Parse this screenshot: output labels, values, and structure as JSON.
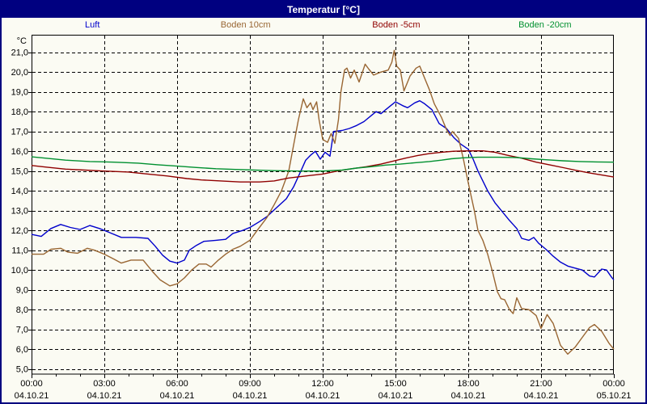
{
  "window": {
    "title": "Temperatur [°C]",
    "title_bg": "#000080",
    "title_color": "#ffffff"
  },
  "legend": {
    "positions_pct": [
      14.1,
      37.9,
      61.3,
      84.4
    ]
  },
  "chart_data": {
    "type": "line",
    "title": "Temperatur [°C]",
    "y_unit": "°C",
    "ylim": [
      5,
      21
    ],
    "xlim_hours": [
      0,
      24
    ],
    "grid": "dashed",
    "legend_position": "top",
    "y_ticks": [
      {
        "v": 21,
        "label": "21,0"
      },
      {
        "v": 20,
        "label": "20,0"
      },
      {
        "v": 19,
        "label": "19,0"
      },
      {
        "v": 18,
        "label": "18,0"
      },
      {
        "v": 17,
        "label": "17,0"
      },
      {
        "v": 16,
        "label": "16,0"
      },
      {
        "v": 15,
        "label": "15,0"
      },
      {
        "v": 14,
        "label": "14,0"
      },
      {
        "v": 13,
        "label": "13,0"
      },
      {
        "v": 12,
        "label": "12,0"
      },
      {
        "v": 11,
        "label": "11,0"
      },
      {
        "v": 10,
        "label": "10,0"
      },
      {
        "v": 9,
        "label": "9,0"
      },
      {
        "v": 8,
        "label": "8,0"
      },
      {
        "v": 7,
        "label": "7,0"
      },
      {
        "v": 6,
        "label": "6,0"
      },
      {
        "v": 5,
        "label": "5,0"
      }
    ],
    "x_ticks": [
      {
        "h": 0,
        "time": "00:00",
        "date": "04.10.21"
      },
      {
        "h": 3,
        "time": "03:00",
        "date": "04.10.21"
      },
      {
        "h": 6,
        "time": "06:00",
        "date": "04.10.21"
      },
      {
        "h": 9,
        "time": "09:00",
        "date": "04.10.21"
      },
      {
        "h": 12,
        "time": "12:00",
        "date": "04.10.21"
      },
      {
        "h": 15,
        "time": "15:00",
        "date": "04.10.21"
      },
      {
        "h": 18,
        "time": "18:00",
        "date": "04.10.21"
      },
      {
        "h": 21,
        "time": "21:00",
        "date": "04.10.21"
      },
      {
        "h": 24,
        "time": "00:00",
        "date": "05.10.21"
      }
    ],
    "series": [
      {
        "name": "Luft",
        "color": "#0000CC",
        "points": [
          [
            0,
            11.8
          ],
          [
            0.4,
            11.7
          ],
          [
            0.8,
            12.1
          ],
          [
            1.2,
            12.3
          ],
          [
            1.6,
            12.15
          ],
          [
            2.0,
            12.05
          ],
          [
            2.4,
            12.25
          ],
          [
            2.8,
            12.1
          ],
          [
            3.2,
            11.9
          ],
          [
            3.7,
            11.65
          ],
          [
            4.3,
            11.65
          ],
          [
            4.8,
            11.6
          ],
          [
            5.1,
            11.2
          ],
          [
            5.4,
            10.75
          ],
          [
            5.7,
            10.45
          ],
          [
            6.0,
            10.35
          ],
          [
            6.3,
            10.5
          ],
          [
            6.5,
            11.0
          ],
          [
            6.8,
            11.25
          ],
          [
            7.1,
            11.45
          ],
          [
            7.6,
            11.5
          ],
          [
            8.0,
            11.55
          ],
          [
            8.3,
            11.85
          ],
          [
            8.7,
            12.0
          ],
          [
            9.0,
            12.15
          ],
          [
            9.4,
            12.45
          ],
          [
            9.7,
            12.7
          ],
          [
            10.1,
            13.15
          ],
          [
            10.5,
            13.6
          ],
          [
            10.8,
            14.2
          ],
          [
            11.1,
            15.0
          ],
          [
            11.3,
            15.55
          ],
          [
            11.5,
            15.8
          ],
          [
            11.7,
            16.0
          ],
          [
            11.9,
            15.6
          ],
          [
            12.1,
            15.95
          ],
          [
            12.3,
            15.75
          ],
          [
            12.45,
            17.0
          ],
          [
            12.8,
            17.05
          ],
          [
            13.1,
            17.15
          ],
          [
            13.4,
            17.3
          ],
          [
            13.7,
            17.5
          ],
          [
            14.0,
            17.8
          ],
          [
            14.2,
            18.0
          ],
          [
            14.4,
            17.9
          ],
          [
            14.6,
            18.1
          ],
          [
            14.8,
            18.3
          ],
          [
            15.0,
            18.5
          ],
          [
            15.3,
            18.3
          ],
          [
            15.5,
            18.2
          ],
          [
            15.8,
            18.45
          ],
          [
            16.0,
            18.55
          ],
          [
            16.2,
            18.4
          ],
          [
            16.5,
            18.1
          ],
          [
            16.8,
            17.4
          ],
          [
            17.1,
            17.15
          ],
          [
            17.4,
            16.7
          ],
          [
            17.7,
            16.35
          ],
          [
            18.0,
            16.1
          ],
          [
            18.2,
            15.6
          ],
          [
            18.4,
            15.0
          ],
          [
            18.6,
            14.5
          ],
          [
            18.8,
            14.0
          ],
          [
            19.1,
            13.4
          ],
          [
            19.4,
            12.95
          ],
          [
            19.7,
            12.5
          ],
          [
            20.0,
            12.1
          ],
          [
            20.2,
            11.6
          ],
          [
            20.5,
            11.5
          ],
          [
            20.7,
            11.65
          ],
          [
            20.9,
            11.35
          ],
          [
            21.2,
            11.05
          ],
          [
            21.5,
            10.7
          ],
          [
            21.8,
            10.4
          ],
          [
            22.1,
            10.2
          ],
          [
            22.4,
            10.1
          ],
          [
            22.7,
            10.0
          ],
          [
            23.0,
            9.7
          ],
          [
            23.2,
            9.65
          ],
          [
            23.5,
            10.05
          ],
          [
            23.7,
            10.0
          ],
          [
            23.9,
            9.65
          ],
          [
            24.0,
            9.5
          ]
        ]
      },
      {
        "name": "Boden 10cm",
        "color": "#996633",
        "points": [
          [
            0,
            10.8
          ],
          [
            0.5,
            10.8
          ],
          [
            0.8,
            11.05
          ],
          [
            1.2,
            11.1
          ],
          [
            1.5,
            10.9
          ],
          [
            1.9,
            10.85
          ],
          [
            2.3,
            11.1
          ],
          [
            2.6,
            11.0
          ],
          [
            3.0,
            10.8
          ],
          [
            3.4,
            10.55
          ],
          [
            3.7,
            10.35
          ],
          [
            4.1,
            10.5
          ],
          [
            4.6,
            10.5
          ],
          [
            5.0,
            9.9
          ],
          [
            5.3,
            9.5
          ],
          [
            5.7,
            9.2
          ],
          [
            6.0,
            9.3
          ],
          [
            6.3,
            9.6
          ],
          [
            6.6,
            10.0
          ],
          [
            6.9,
            10.3
          ],
          [
            7.2,
            10.3
          ],
          [
            7.4,
            10.15
          ],
          [
            7.7,
            10.5
          ],
          [
            8.0,
            10.8
          ],
          [
            8.3,
            11.05
          ],
          [
            8.6,
            11.2
          ],
          [
            9.0,
            11.5
          ],
          [
            9.3,
            12.0
          ],
          [
            9.7,
            12.65
          ],
          [
            10.0,
            13.3
          ],
          [
            10.3,
            14.0
          ],
          [
            10.6,
            15.0
          ],
          [
            10.8,
            16.3
          ],
          [
            11.0,
            17.6
          ],
          [
            11.2,
            18.65
          ],
          [
            11.35,
            18.2
          ],
          [
            11.5,
            18.45
          ],
          [
            11.6,
            18.1
          ],
          [
            11.75,
            18.5
          ],
          [
            11.85,
            17.6
          ],
          [
            12.0,
            16.6
          ],
          [
            12.2,
            16.45
          ],
          [
            12.35,
            16.9
          ],
          [
            12.5,
            16.4
          ],
          [
            12.65,
            17.6
          ],
          [
            12.75,
            19.0
          ],
          [
            12.9,
            20.1
          ],
          [
            13.0,
            20.2
          ],
          [
            13.15,
            19.7
          ],
          [
            13.3,
            20.1
          ],
          [
            13.5,
            19.5
          ],
          [
            13.75,
            20.4
          ],
          [
            13.9,
            20.15
          ],
          [
            14.1,
            19.85
          ],
          [
            14.4,
            20.0
          ],
          [
            14.7,
            20.1
          ],
          [
            14.85,
            20.5
          ],
          [
            14.95,
            21.1
          ],
          [
            15.05,
            20.3
          ],
          [
            15.2,
            20.1
          ],
          [
            15.35,
            19.05
          ],
          [
            15.6,
            19.8
          ],
          [
            15.85,
            20.2
          ],
          [
            16.0,
            20.3
          ],
          [
            16.2,
            19.7
          ],
          [
            16.4,
            19.1
          ],
          [
            16.6,
            18.4
          ],
          [
            16.9,
            17.7
          ],
          [
            17.1,
            17.1
          ],
          [
            17.25,
            16.8
          ],
          [
            17.35,
            17.0
          ],
          [
            17.6,
            16.65
          ],
          [
            17.8,
            15.6
          ],
          [
            18.0,
            14.4
          ],
          [
            18.25,
            13.0
          ],
          [
            18.4,
            12.0
          ],
          [
            18.6,
            11.5
          ],
          [
            18.8,
            10.8
          ],
          [
            19.0,
            9.9
          ],
          [
            19.2,
            8.9
          ],
          [
            19.35,
            8.55
          ],
          [
            19.5,
            8.5
          ],
          [
            19.7,
            8.0
          ],
          [
            19.85,
            7.8
          ],
          [
            20.0,
            8.6
          ],
          [
            20.2,
            8.05
          ],
          [
            20.5,
            8.0
          ],
          [
            20.8,
            7.7
          ],
          [
            21.0,
            7.05
          ],
          [
            21.25,
            7.75
          ],
          [
            21.5,
            7.3
          ],
          [
            21.8,
            6.2
          ],
          [
            22.1,
            5.75
          ],
          [
            22.4,
            6.1
          ],
          [
            22.7,
            6.6
          ],
          [
            23.0,
            7.1
          ],
          [
            23.2,
            7.25
          ],
          [
            23.5,
            6.9
          ],
          [
            23.8,
            6.3
          ],
          [
            24.0,
            6.0
          ]
        ]
      },
      {
        "name": "Boden -5cm",
        "color": "#900000",
        "points": [
          [
            0,
            15.28
          ],
          [
            0.6,
            15.2
          ],
          [
            1.4,
            15.1
          ],
          [
            2.2,
            15.05
          ],
          [
            3.0,
            15.0
          ],
          [
            4.0,
            14.95
          ],
          [
            4.8,
            14.85
          ],
          [
            5.6,
            14.75
          ],
          [
            6.4,
            14.62
          ],
          [
            7.0,
            14.55
          ],
          [
            7.8,
            14.5
          ],
          [
            8.6,
            14.45
          ],
          [
            9.4,
            14.45
          ],
          [
            10.0,
            14.5
          ],
          [
            10.6,
            14.65
          ],
          [
            11.3,
            14.75
          ],
          [
            12.0,
            14.85
          ],
          [
            12.6,
            15.0
          ],
          [
            13.2,
            15.12
          ],
          [
            13.8,
            15.22
          ],
          [
            14.4,
            15.35
          ],
          [
            14.9,
            15.5
          ],
          [
            15.4,
            15.65
          ],
          [
            15.9,
            15.78
          ],
          [
            16.4,
            15.88
          ],
          [
            16.9,
            15.95
          ],
          [
            17.4,
            16.0
          ],
          [
            18.0,
            16.02
          ],
          [
            18.6,
            16.02
          ],
          [
            19.1,
            15.95
          ],
          [
            19.6,
            15.8
          ],
          [
            20.2,
            15.65
          ],
          [
            20.8,
            15.45
          ],
          [
            21.4,
            15.3
          ],
          [
            22.0,
            15.15
          ],
          [
            22.5,
            15.02
          ],
          [
            23.0,
            14.9
          ],
          [
            23.5,
            14.8
          ],
          [
            24.0,
            14.7
          ]
        ]
      },
      {
        "name": "Boden -20cm",
        "color": "#009030",
        "points": [
          [
            0,
            15.72
          ],
          [
            0.6,
            15.65
          ],
          [
            1.4,
            15.55
          ],
          [
            2.4,
            15.48
          ],
          [
            3.4,
            15.45
          ],
          [
            4.4,
            15.4
          ],
          [
            5.2,
            15.32
          ],
          [
            6.0,
            15.25
          ],
          [
            6.8,
            15.18
          ],
          [
            7.6,
            15.12
          ],
          [
            8.4,
            15.08
          ],
          [
            9.2,
            15.05
          ],
          [
            10.0,
            15.02
          ],
          [
            11.0,
            15.0
          ],
          [
            12.0,
            15.0
          ],
          [
            12.8,
            15.05
          ],
          [
            13.4,
            15.15
          ],
          [
            14.0,
            15.22
          ],
          [
            14.6,
            15.3
          ],
          [
            15.2,
            15.35
          ],
          [
            15.8,
            15.42
          ],
          [
            16.4,
            15.48
          ],
          [
            16.9,
            15.55
          ],
          [
            17.3,
            15.62
          ],
          [
            17.8,
            15.67
          ],
          [
            18.4,
            15.7
          ],
          [
            19.2,
            15.7
          ],
          [
            20.0,
            15.68
          ],
          [
            20.6,
            15.62
          ],
          [
            21.2,
            15.57
          ],
          [
            21.9,
            15.52
          ],
          [
            22.6,
            15.48
          ],
          [
            23.3,
            15.46
          ],
          [
            24.0,
            15.45
          ]
        ]
      }
    ]
  }
}
